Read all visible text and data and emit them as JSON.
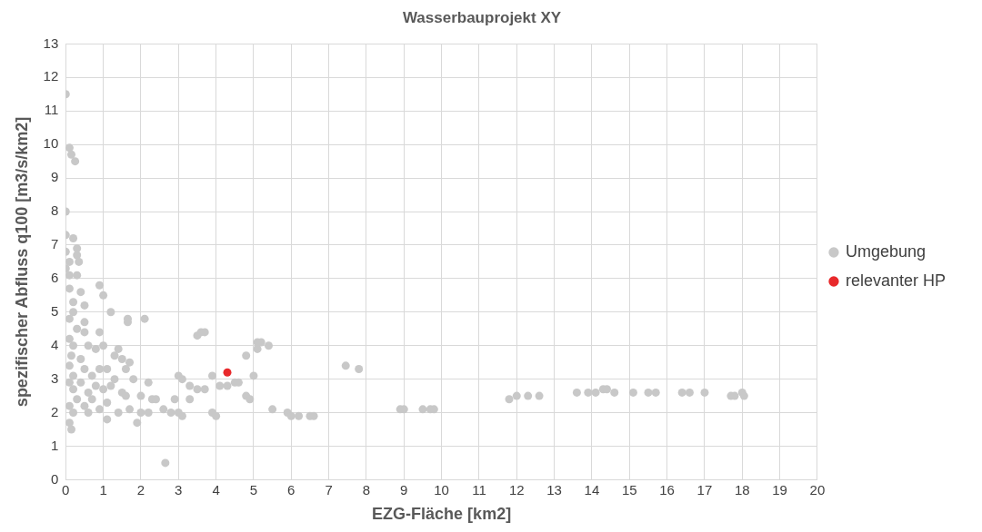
{
  "chart_data": {
    "type": "scatter",
    "title": "Wasserbauprojekt XY",
    "xlabel": "EZG-Fläche [km2]",
    "ylabel": "spezifischer Abfluss q100 [m3/s/km2]",
    "xlim": [
      0,
      20
    ],
    "xticks": [
      0,
      1,
      2,
      3,
      4,
      5,
      6,
      7,
      8,
      9,
      10,
      11,
      12,
      13,
      14,
      15,
      16,
      17,
      18,
      19,
      20
    ],
    "ylim": [
      0,
      13
    ],
    "yticks": [
      0,
      1,
      2,
      3,
      4,
      5,
      6,
      7,
      8,
      9,
      10,
      11,
      12,
      13
    ],
    "grid": true,
    "legend": "right",
    "marker": "circle",
    "series": [
      {
        "name": "Umgebung",
        "color": "#c8c8c8",
        "x": [
          0,
          0.1,
          0.15,
          0.25,
          0,
          0,
          0.2,
          0,
          0.3,
          0.3,
          0.1,
          0.35,
          0,
          0.1,
          0.3,
          0.1,
          0.4,
          0.9,
          1.0,
          0.2,
          0.5,
          0.2,
          1.2,
          0.1,
          0.5,
          0.3,
          1.65,
          1.65,
          2.1,
          0.1,
          0.5,
          0.9,
          0.2,
          0.6,
          0.8,
          1.0,
          1.4,
          0.15,
          0.4,
          1.3,
          1.5,
          1.7,
          0.1,
          0.5,
          0.9,
          1.1,
          1.6,
          0.2,
          0.7,
          1.3,
          1.8,
          0.1,
          0.4,
          0.8,
          1.2,
          2.2,
          0.2,
          0.6,
          1.0,
          1.5,
          2.0,
          2.3,
          0.3,
          0.7,
          1.1,
          1.6,
          0.1,
          0.5,
          0.9,
          1.4,
          1.7,
          2.0,
          2.2,
          0.2,
          0.6,
          1.1,
          1.9,
          0.1,
          0.15,
          2.65,
          2.4,
          2.6,
          2.8,
          3.0,
          3.1,
          2.9,
          3.0,
          3.1,
          3.3,
          3.3,
          3.5,
          3.7,
          3.9,
          3.9,
          4.0,
          3.6,
          3.7,
          3.5,
          4.1,
          4.3,
          4.5,
          4.6,
          4.8,
          4.8,
          4.9,
          5.0,
          5.1,
          5.2,
          5.1,
          5.4,
          5.5,
          5.9,
          6.0,
          6.2,
          6.5,
          6.6,
          7.45,
          7.8,
          8.9,
          9.0,
          9.5,
          9.7,
          9.8,
          11.8,
          12.0,
          12.3,
          12.6,
          13.6,
          13.9,
          14.1,
          14.3,
          14.4,
          14.6,
          15.1,
          15.5,
          15.7,
          16.4,
          16.6,
          17.0,
          17.7,
          17.8,
          18.0,
          18.05
        ],
        "values": [
          11.5,
          9.9,
          9.7,
          9.5,
          8.0,
          7.3,
          7.2,
          6.8,
          6.9,
          6.7,
          6.5,
          6.5,
          6.3,
          6.1,
          6.1,
          5.7,
          5.6,
          5.8,
          5.5,
          5.3,
          5.2,
          5.0,
          5.0,
          4.8,
          4.7,
          4.5,
          4.8,
          4.7,
          4.8,
          4.2,
          4.4,
          4.4,
          4.0,
          4.0,
          3.9,
          4.0,
          3.9,
          3.7,
          3.6,
          3.7,
          3.6,
          3.5,
          3.4,
          3.3,
          3.3,
          3.3,
          3.3,
          3.1,
          3.1,
          3.0,
          3.0,
          2.9,
          2.9,
          2.8,
          2.8,
          2.9,
          2.7,
          2.6,
          2.7,
          2.6,
          2.5,
          2.4,
          2.4,
          2.4,
          2.3,
          2.5,
          2.2,
          2.2,
          2.1,
          2.0,
          2.1,
          2.0,
          2.0,
          2.0,
          2.0,
          1.8,
          1.7,
          1.7,
          1.5,
          0.5,
          2.4,
          2.1,
          2.0,
          2.0,
          1.9,
          2.4,
          3.1,
          3.0,
          2.8,
          2.4,
          2.7,
          2.7,
          3.1,
          2.0,
          1.9,
          4.4,
          4.4,
          4.3,
          2.8,
          2.8,
          2.9,
          2.9,
          3.7,
          2.5,
          2.4,
          3.1,
          4.1,
          4.1,
          3.9,
          4.0,
          2.1,
          2.0,
          1.9,
          1.9,
          1.9,
          1.9,
          3.4,
          3.3,
          2.1,
          2.1,
          2.1,
          2.1,
          2.1,
          2.4,
          2.5,
          2.5,
          2.5,
          2.6,
          2.6,
          2.6,
          2.7,
          2.7,
          2.6,
          2.6,
          2.6,
          2.6,
          2.6,
          2.6,
          2.6,
          2.5,
          2.5,
          2.6,
          2.5
        ]
      },
      {
        "name": "relevanter HP",
        "color": "#e8292b",
        "x": [
          4.3
        ],
        "values": [
          3.2
        ]
      }
    ]
  }
}
